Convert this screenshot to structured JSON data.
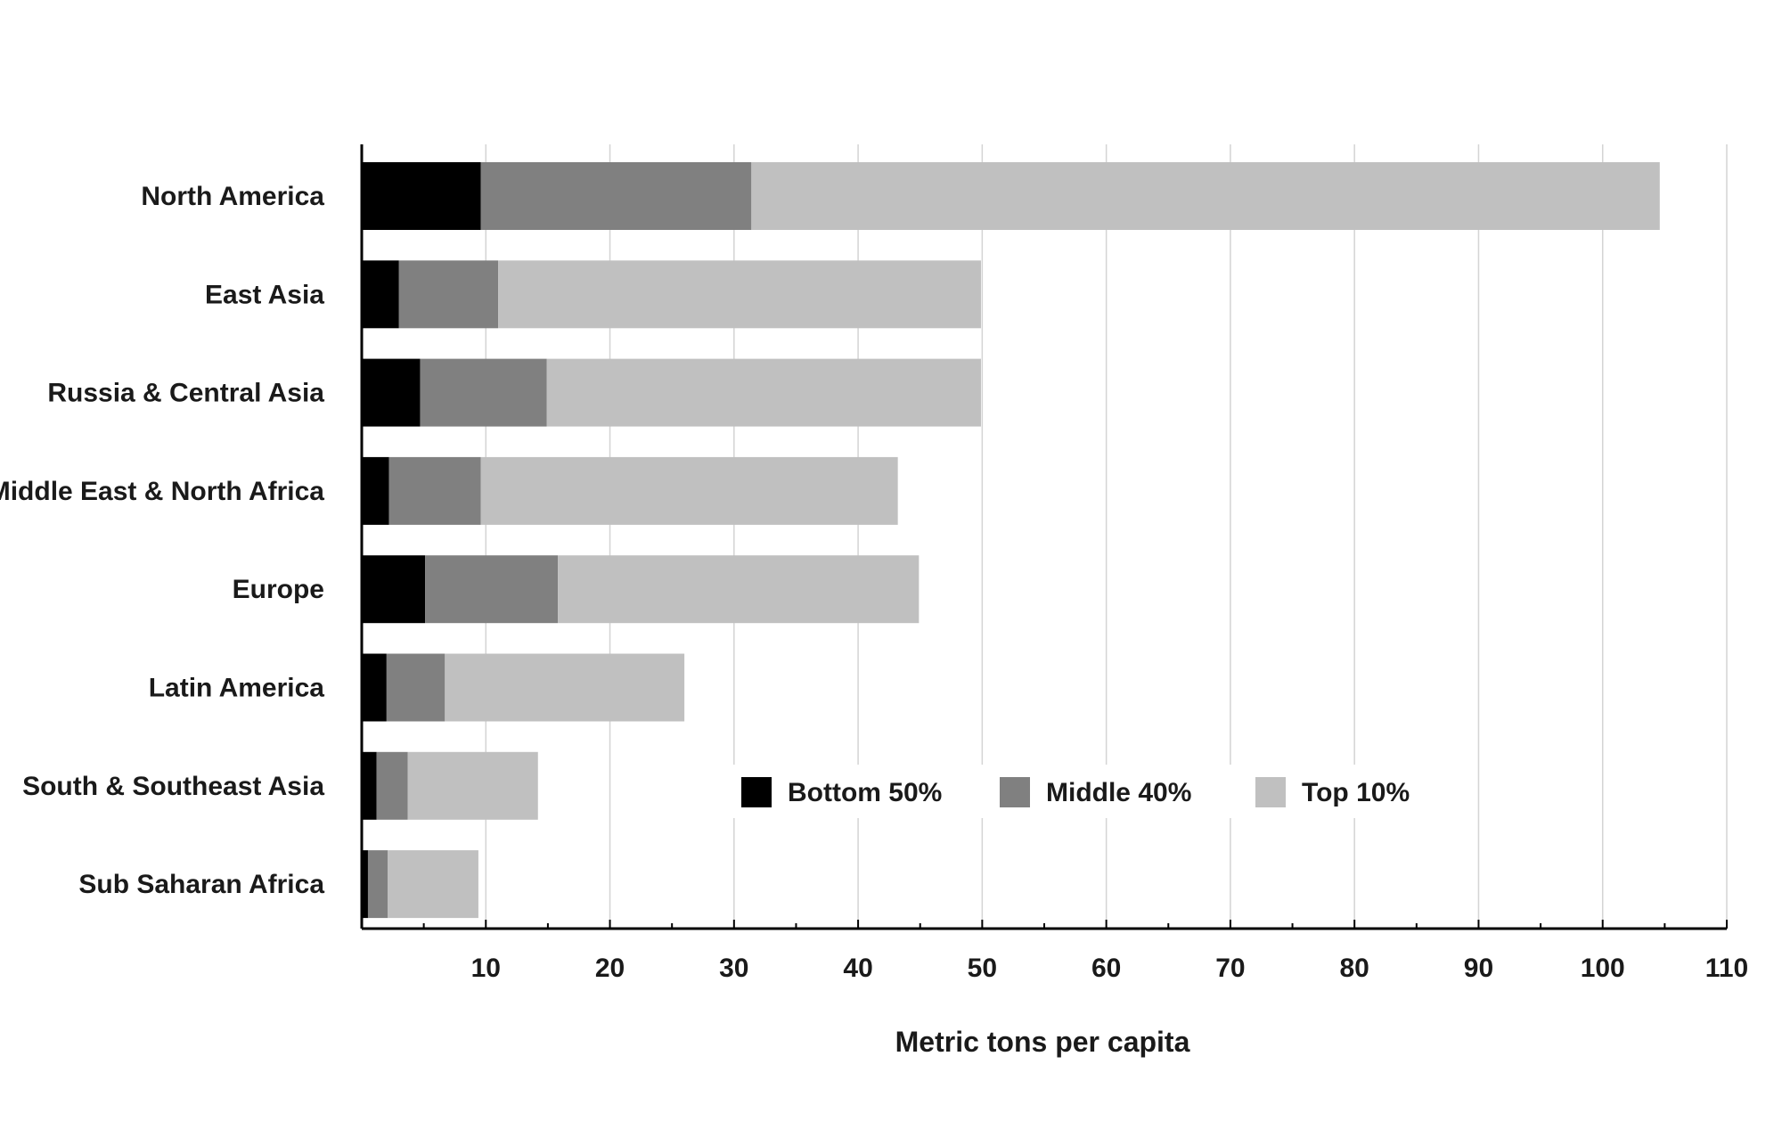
{
  "chart_data": {
    "type": "bar",
    "orientation": "horizontal",
    "stacked": true,
    "categories": [
      "North America",
      "East Asia",
      "Russia & Central Asia",
      "Middle East & North Africa",
      "Europe",
      "Latin America",
      "South & Southeast Asia",
      "Sub Saharan Africa"
    ],
    "series": [
      {
        "name": "Bottom 50%",
        "color": "#000000",
        "values": [
          9.6,
          3.0,
          4.7,
          2.2,
          5.1,
          2.0,
          1.2,
          0.5
        ]
      },
      {
        "name": "Middle 40%",
        "color": "#808080",
        "values": [
          21.8,
          8.0,
          10.2,
          7.4,
          10.7,
          4.7,
          2.5,
          1.6
        ]
      },
      {
        "name": "Top 10%",
        "color": "#c0c0c0",
        "values": [
          73.2,
          38.9,
          35.0,
          33.6,
          29.1,
          19.3,
          10.5,
          7.3
        ]
      }
    ],
    "xlabel": "Metric tons per capita",
    "ylabel": "",
    "xlim": [
      0,
      110
    ],
    "xticks": [
      10,
      20,
      30,
      40,
      50,
      60,
      70,
      80,
      90,
      100,
      110
    ],
    "grid": "vertical",
    "legend_position": "inside-bottom-center"
  }
}
